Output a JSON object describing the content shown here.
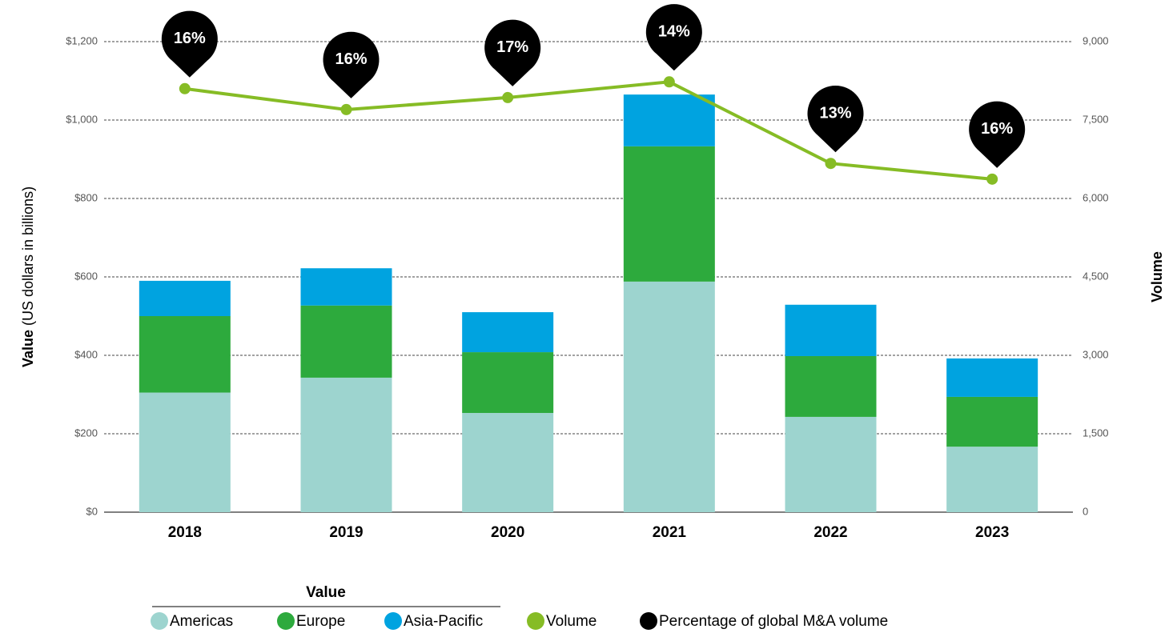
{
  "chart_data": {
    "type": "bar",
    "ylabel": [
      "Value",
      "(US dollars in billions)"
    ],
    "y2label": "Volume",
    "categories": [
      "2018",
      "2019",
      "2020",
      "2021",
      "2022",
      "2023"
    ],
    "series": [
      {
        "name": "Americas",
        "color": "#9dd4cf",
        "values": [
          305,
          343,
          253,
          588,
          243,
          167
        ]
      },
      {
        "name": "Europe",
        "color": "#2daa3d",
        "values": [
          195,
          184,
          155,
          345,
          155,
          127
        ]
      },
      {
        "name": "Asia-Pacific",
        "color": "#00a3e0",
        "values": [
          90,
          95,
          102,
          132,
          131,
          98
        ]
      },
      {
        "name": "Volume",
        "color": "#86bc25",
        "axis": "y2",
        "type": "line",
        "values": [
          8100,
          7700,
          7930,
          8230,
          6670,
          6370
        ]
      },
      {
        "name": "Percentage of global M&A volume",
        "color": "#000000",
        "type": "annotation",
        "values": [
          16,
          16,
          17,
          14,
          13,
          16
        ],
        "value_labels": [
          "16%",
          "16%",
          "17%",
          "14%",
          "13%",
          "16%"
        ]
      }
    ],
    "legend_title": "Value",
    "ylim": [
      0,
      1200
    ],
    "yticks": [
      {
        "value": 0,
        "label": "$0"
      },
      {
        "value": 200,
        "label": "$200"
      },
      {
        "value": 400,
        "label": "$400"
      },
      {
        "value": 600,
        "label": "$600"
      },
      {
        "value": 800,
        "label": "$800"
      },
      {
        "value": 1000,
        "label": "$1,000"
      },
      {
        "value": 1200,
        "label": "$1,200"
      }
    ],
    "y2lim": [
      0,
      9000
    ],
    "y2ticks": [
      0,
      {
        "value": 1500,
        "label": "1,500"
      },
      {
        "value": 3000,
        "label": "3,000"
      },
      {
        "value": 4500,
        "label": "4,500"
      },
      {
        "value": 6000,
        "label": "6,000"
      },
      {
        "value": 7500,
        "label": "7,500"
      },
      {
        "value": 9000,
        "label": "9,000"
      }
    ],
    "grid": true,
    "legend": "bottom"
  }
}
